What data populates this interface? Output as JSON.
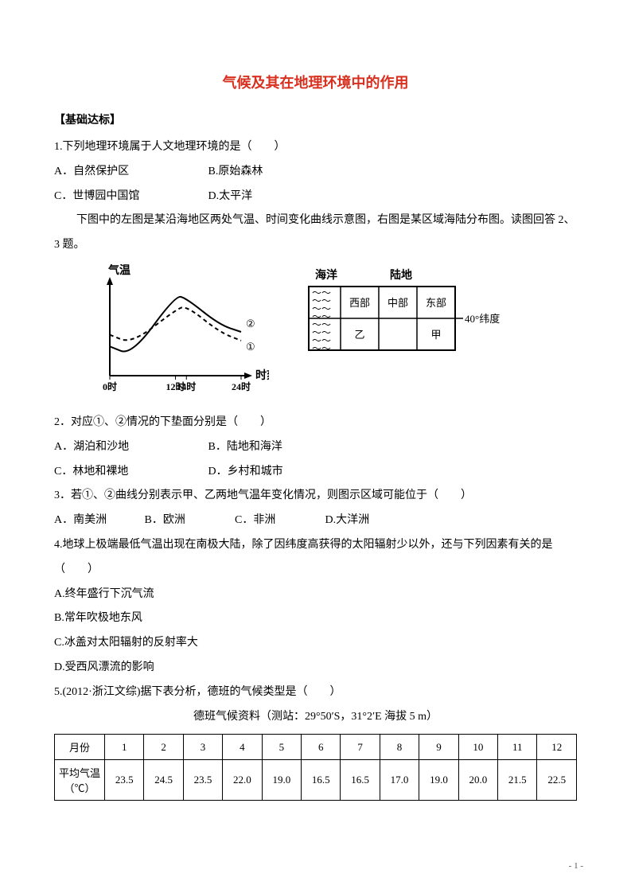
{
  "title": {
    "text": "气候及其在地理环境中的作用",
    "color": "#d7301f"
  },
  "section": "【基础达标】",
  "q1": {
    "stem": "1.下列地理环境属于人文地理环境的是（　　）",
    "A": "A．自然保护区",
    "B": "B.原始森林",
    "C": "C．世博园中国馆",
    "D": "D.太平洋"
  },
  "intro23": "下图中的左图是某沿海地区两处气温、时间变化曲线示意图，右图是某区域海陆分布图。读图回答 2、3 题。",
  "chart": {
    "type": "line",
    "y_label": "气温",
    "x_label": "时刻",
    "x_ticks": [
      "0时",
      "12时",
      "14时",
      "24时"
    ],
    "series": [
      {
        "label": "②",
        "dash": false,
        "color": "#000000",
        "points": [
          [
            0,
            20
          ],
          [
            4,
            14
          ],
          [
            12,
            55
          ],
          [
            14,
            53
          ],
          [
            20,
            35
          ],
          [
            24,
            30
          ]
        ]
      },
      {
        "label": "①",
        "dash": true,
        "color": "#000000",
        "points": [
          [
            0,
            28
          ],
          [
            4,
            22
          ],
          [
            12,
            45
          ],
          [
            14,
            48
          ],
          [
            20,
            30
          ],
          [
            24,
            24
          ]
        ]
      }
    ],
    "axis_color": "#000000",
    "background": "#ffffff"
  },
  "grid": {
    "type": "table-diagram",
    "top_labels": {
      "ocean": "海洋",
      "land": "陆地"
    },
    "right_label": "40°纬度",
    "row1": [
      "西部",
      "中部",
      "东部"
    ],
    "row2": [
      "乙",
      "",
      "甲"
    ],
    "wave_color": "#000000",
    "border_color": "#000000"
  },
  "q2": {
    "stem": "2．对应①、②情况的下垫面分别是（　　）",
    "A": "A．湖泊和沙地",
    "B": "B．陆地和海洋",
    "C": "C．林地和裸地",
    "D": "D．乡村和城市"
  },
  "q3": {
    "stem": "3．若①、②曲线分别表示甲、乙两地气温年变化情况，则图示区域可能位于（　　）",
    "A": "A．南美洲",
    "B": "B．欧洲",
    "C": "C．非洲",
    "D": "D.大洋洲"
  },
  "q4": {
    "stem": "4.地球上极端最低气温出现在南极大陆，除了因纬度高获得的太阳辐射少以外，还与下列因素有关的是（　　）",
    "A": "A.终年盛行下沉气流",
    "B": "B.常年吹极地东风",
    "C": "C.冰盖对太阳辐射的反射率大",
    "D": "D.受西风漂流的影响"
  },
  "q5": {
    "stem": "5.(2012·浙江文综)据下表分析，德班的气候类型是（　　）",
    "table_caption": "德班气候资料（测站：29°50′S，31°2′E 海拔 5 m）"
  },
  "climate_table": {
    "type": "table",
    "header_month": "月份",
    "header_temp": "平均气温（℃）",
    "months": [
      "1",
      "2",
      "3",
      "4",
      "5",
      "6",
      "7",
      "8",
      "9",
      "10",
      "11",
      "12"
    ],
    "temps": [
      "23.5",
      "24.5",
      "23.5",
      "22.0",
      "19.0",
      "16.5",
      "16.5",
      "17.0",
      "19.0",
      "20.0",
      "21.5",
      "22.5"
    ]
  },
  "page_number": "- 1 -"
}
